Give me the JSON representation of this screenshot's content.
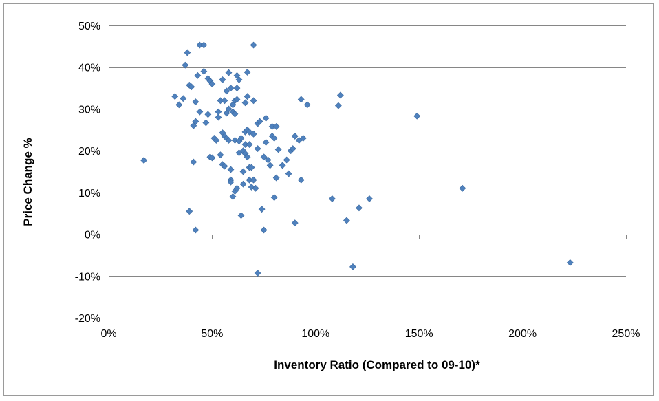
{
  "chart_data": {
    "type": "scatter",
    "title": "",
    "xlabel": "Inventory Ratio (Compared to 09-10)*",
    "ylabel": "Price Change %",
    "xlim": [
      0,
      2.5
    ],
    "ylim": [
      -0.2,
      0.5
    ],
    "x_ticks": [
      0,
      0.5,
      1.0,
      1.5,
      2.0,
      2.5
    ],
    "x_tick_labels": [
      "0%",
      "50%",
      "100%",
      "150%",
      "200%",
      "250%"
    ],
    "y_ticks": [
      -0.2,
      -0.1,
      0,
      0.1,
      0.2,
      0.3,
      0.4,
      0.5
    ],
    "y_tick_labels": [
      "-20%",
      "-10%",
      "0%",
      "10%",
      "20%",
      "30%",
      "40%",
      "50%"
    ],
    "grid": "horizontal",
    "legend": "none",
    "marker": "diamond",
    "marker_color": "#4f81bd",
    "points": [
      [
        0.17,
        0.177
      ],
      [
        0.32,
        0.33
      ],
      [
        0.34,
        0.31
      ],
      [
        0.36,
        0.325
      ],
      [
        0.37,
        0.405
      ],
      [
        0.38,
        0.435
      ],
      [
        0.39,
        0.055
      ],
      [
        0.39,
        0.357
      ],
      [
        0.4,
        0.353
      ],
      [
        0.41,
        0.173
      ],
      [
        0.41,
        0.26
      ],
      [
        0.42,
        0.01
      ],
      [
        0.42,
        0.27
      ],
      [
        0.42,
        0.317
      ],
      [
        0.43,
        0.38
      ],
      [
        0.44,
        0.453
      ],
      [
        0.44,
        0.293
      ],
      [
        0.46,
        0.453
      ],
      [
        0.46,
        0.39
      ],
      [
        0.47,
        0.267
      ],
      [
        0.48,
        0.373
      ],
      [
        0.48,
        0.287
      ],
      [
        0.49,
        0.185
      ],
      [
        0.49,
        0.367
      ],
      [
        0.5,
        0.183
      ],
      [
        0.5,
        0.36
      ],
      [
        0.51,
        0.23
      ],
      [
        0.52,
        0.225
      ],
      [
        0.53,
        0.28
      ],
      [
        0.53,
        0.293
      ],
      [
        0.54,
        0.19
      ],
      [
        0.54,
        0.32
      ],
      [
        0.55,
        0.37
      ],
      [
        0.55,
        0.167
      ],
      [
        0.55,
        0.243
      ],
      [
        0.56,
        0.235
      ],
      [
        0.56,
        0.32
      ],
      [
        0.56,
        0.163
      ],
      [
        0.57,
        0.343
      ],
      [
        0.57,
        0.23
      ],
      [
        0.57,
        0.29
      ],
      [
        0.58,
        0.3
      ],
      [
        0.58,
        0.225
      ],
      [
        0.58,
        0.387
      ],
      [
        0.59,
        0.155
      ],
      [
        0.59,
        0.35
      ],
      [
        0.59,
        0.13
      ],
      [
        0.59,
        0.125
      ],
      [
        0.6,
        0.09
      ],
      [
        0.6,
        0.31
      ],
      [
        0.6,
        0.31
      ],
      [
        0.6,
        0.293
      ],
      [
        0.61,
        0.103
      ],
      [
        0.61,
        0.32
      ],
      [
        0.61,
        0.288
      ],
      [
        0.61,
        0.225
      ],
      [
        0.62,
        0.38
      ],
      [
        0.62,
        0.35
      ],
      [
        0.62,
        0.323
      ],
      [
        0.62,
        0.11
      ],
      [
        0.63,
        0.37
      ],
      [
        0.63,
        0.195
      ],
      [
        0.63,
        0.223
      ],
      [
        0.64,
        0.23
      ],
      [
        0.64,
        0.045
      ],
      [
        0.65,
        0.15
      ],
      [
        0.65,
        0.12
      ],
      [
        0.65,
        0.2
      ],
      [
        0.66,
        0.245
      ],
      [
        0.66,
        0.315
      ],
      [
        0.66,
        0.193
      ],
      [
        0.66,
        0.215
      ],
      [
        0.67,
        0.25
      ],
      [
        0.67,
        0.33
      ],
      [
        0.67,
        0.388
      ],
      [
        0.67,
        0.185
      ],
      [
        0.68,
        0.245
      ],
      [
        0.68,
        0.16
      ],
      [
        0.68,
        0.13
      ],
      [
        0.68,
        0.215
      ],
      [
        0.69,
        0.113
      ],
      [
        0.69,
        0.16
      ],
      [
        0.7,
        0.24
      ],
      [
        0.7,
        0.32
      ],
      [
        0.7,
        0.453
      ],
      [
        0.7,
        0.13
      ],
      [
        0.71,
        0.11
      ],
      [
        0.72,
        0.205
      ],
      [
        0.72,
        -0.093
      ],
      [
        0.72,
        0.265
      ],
      [
        0.73,
        0.27
      ],
      [
        0.74,
        0.06
      ],
      [
        0.75,
        0.185
      ],
      [
        0.75,
        0.01
      ],
      [
        0.76,
        0.278
      ],
      [
        0.76,
        0.22
      ],
      [
        0.77,
        0.178
      ],
      [
        0.78,
        0.165
      ],
      [
        0.79,
        0.235
      ],
      [
        0.79,
        0.258
      ],
      [
        0.8,
        0.088
      ],
      [
        0.8,
        0.23
      ],
      [
        0.81,
        0.135
      ],
      [
        0.81,
        0.258
      ],
      [
        0.82,
        0.203
      ],
      [
        0.84,
        0.165
      ],
      [
        0.86,
        0.178
      ],
      [
        0.87,
        0.145
      ],
      [
        0.88,
        0.2
      ],
      [
        0.89,
        0.205
      ],
      [
        0.9,
        0.027
      ],
      [
        0.9,
        0.235
      ],
      [
        0.92,
        0.225
      ],
      [
        0.93,
        0.13
      ],
      [
        0.93,
        0.323
      ],
      [
        0.94,
        0.23
      ],
      [
        0.96,
        0.31
      ],
      [
        1.08,
        0.085
      ],
      [
        1.11,
        0.308
      ],
      [
        1.12,
        0.333
      ],
      [
        1.15,
        0.033
      ],
      [
        1.18,
        -0.078
      ],
      [
        1.21,
        0.063
      ],
      [
        1.26,
        0.085
      ],
      [
        1.49,
        0.283
      ],
      [
        1.71,
        0.11
      ],
      [
        2.23,
        -0.068
      ]
    ]
  }
}
